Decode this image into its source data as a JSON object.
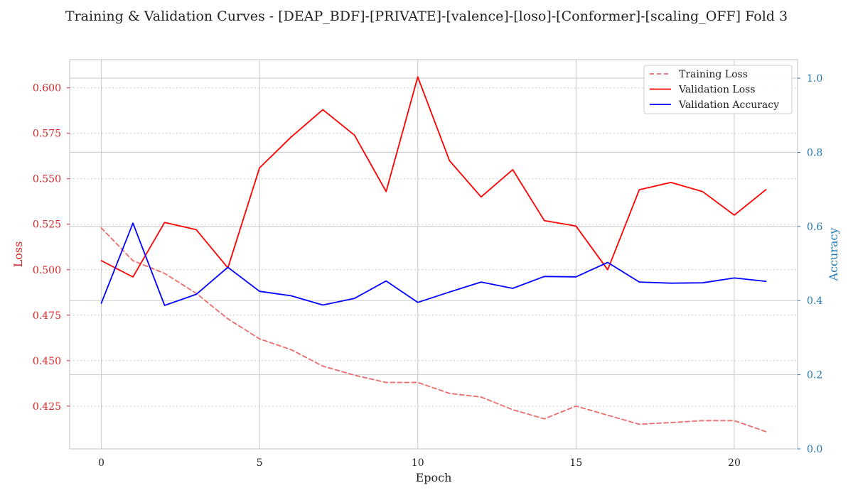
{
  "title": "Training & Validation Curves - [DEAP_BDF]-[PRIVATE]-[valence]-[loso]-[Conformer]-[scaling_OFF] Fold 3",
  "colors": {
    "training_loss": "#ee6b6b",
    "validation_loss": "#ff0000",
    "validation_accuracy": "#0000ff",
    "loss_axis": "#d62728",
    "accuracy_axis": "#1f77b4",
    "grid": "#cccccc",
    "frame": "#cccccc",
    "text": "#222222"
  },
  "chart_data": {
    "type": "line",
    "title": "Training & Validation Curves - [DEAP_BDF]-[PRIVATE]-[valence]-[loso]-[Conformer]-[scaling_OFF] Fold 3",
    "xlabel": "Epoch",
    "ylabel_left": "Loss",
    "ylabel_right": "Accuracy",
    "x": [
      0,
      1,
      2,
      3,
      4,
      5,
      6,
      7,
      8,
      9,
      10,
      11,
      12,
      13,
      14,
      15,
      16,
      17,
      18,
      19,
      20,
      21
    ],
    "xlim": [
      -1,
      22
    ],
    "xticks": [
      0,
      5,
      10,
      15,
      20
    ],
    "ylim_left": [
      0.4015,
      0.6155
    ],
    "yticks_left": [
      0.425,
      0.45,
      0.475,
      0.5,
      0.525,
      0.55,
      0.575,
      0.6
    ],
    "ylim_right": [
      0.0,
      1.05
    ],
    "yticks_right": [
      0.0,
      0.2,
      0.4,
      0.6,
      0.8,
      1.0
    ],
    "grid": true,
    "legend_position": "top-right",
    "series": [
      {
        "name": "Training Loss",
        "axis": "left",
        "style": "dashed",
        "values": [
          0.523,
          0.505,
          0.498,
          0.487,
          0.473,
          0.462,
          0.456,
          0.447,
          0.442,
          0.438,
          0.438,
          0.432,
          0.43,
          0.423,
          0.418,
          0.425,
          0.42,
          0.415,
          0.416,
          0.417,
          0.417,
          0.411
        ]
      },
      {
        "name": "Validation Loss",
        "axis": "left",
        "style": "solid",
        "values": [
          0.505,
          0.496,
          0.526,
          0.522,
          0.501,
          0.556,
          0.573,
          0.588,
          0.574,
          0.543,
          0.606,
          0.56,
          0.54,
          0.555,
          0.527,
          0.524,
          0.5,
          0.544,
          0.548,
          0.543,
          0.53,
          0.544
        ]
      },
      {
        "name": "Validation Accuracy",
        "axis": "right",
        "style": "solid",
        "values": [
          0.393,
          0.609,
          0.387,
          0.417,
          0.49,
          0.425,
          0.413,
          0.388,
          0.406,
          0.453,
          0.395,
          0.423,
          0.45,
          0.433,
          0.465,
          0.464,
          0.503,
          0.45,
          0.447,
          0.448,
          0.461,
          0.452
        ]
      }
    ]
  }
}
